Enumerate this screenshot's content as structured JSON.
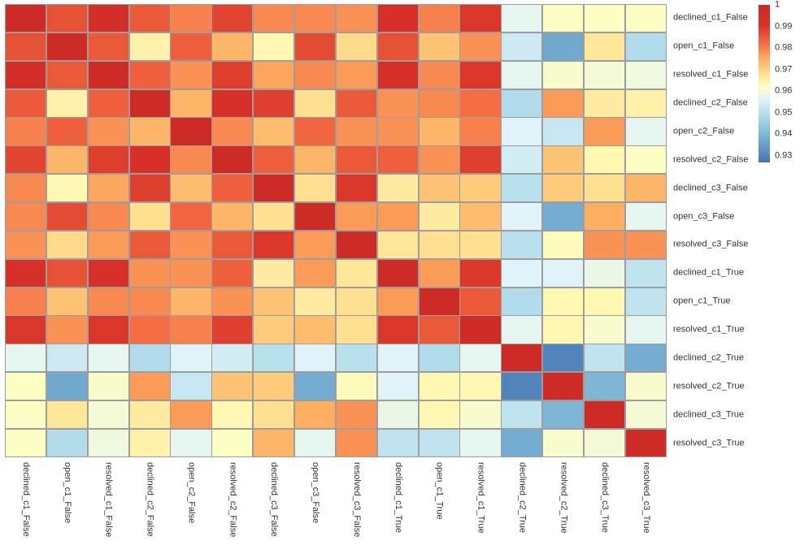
{
  "chart_data": {
    "type": "heatmap",
    "description": "correlation matrix heatmap",
    "labels": [
      "declined_c1_False",
      "open_c1_False",
      "resolved_c1_False",
      "declined_c2_False",
      "open_c2_False",
      "resolved_c2_False",
      "declined_c3_False",
      "open_c3_False",
      "resolved_c3_False",
      "declined_c1_True",
      "open_c1_True",
      "resolved_c1_True",
      "declined_c2_True",
      "resolved_c2_True",
      "declined_c3_True",
      "resolved_c3_True"
    ],
    "matrix": [
      [
        1.0,
        0.986,
        0.995,
        0.985,
        0.98,
        0.988,
        0.979,
        0.979,
        0.978,
        0.993,
        0.98,
        0.99,
        0.957,
        0.962,
        0.962,
        0.962
      ],
      [
        0.986,
        1.0,
        0.985,
        0.965,
        0.984,
        0.974,
        0.964,
        0.987,
        0.969,
        0.986,
        0.972,
        0.978,
        0.953,
        0.937,
        0.967,
        0.949
      ],
      [
        0.995,
        0.985,
        1.0,
        0.984,
        0.978,
        0.989,
        0.976,
        0.979,
        0.977,
        0.992,
        0.979,
        0.99,
        0.957,
        0.961,
        0.96,
        0.959
      ],
      [
        0.985,
        0.965,
        0.984,
        1.0,
        0.974,
        0.992,
        0.989,
        0.968,
        0.985,
        0.978,
        0.979,
        0.982,
        0.949,
        0.977,
        0.966,
        0.965
      ],
      [
        0.98,
        0.984,
        0.978,
        0.974,
        1.0,
        0.979,
        0.973,
        0.983,
        0.978,
        0.978,
        0.974,
        0.98,
        0.956,
        0.952,
        0.977,
        0.957
      ],
      [
        0.988,
        0.974,
        0.989,
        0.992,
        0.979,
        1.0,
        0.984,
        0.974,
        0.985,
        0.984,
        0.978,
        0.989,
        0.954,
        0.972,
        0.964,
        0.962
      ],
      [
        0.979,
        0.964,
        0.976,
        0.989,
        0.973,
        0.984,
        1.0,
        0.968,
        0.99,
        0.966,
        0.972,
        0.971,
        0.95,
        0.971,
        0.968,
        0.974
      ],
      [
        0.979,
        0.987,
        0.979,
        0.968,
        0.983,
        0.974,
        0.968,
        1.0,
        0.977,
        0.977,
        0.966,
        0.973,
        0.956,
        0.938,
        0.975,
        0.957
      ],
      [
        0.978,
        0.969,
        0.977,
        0.985,
        0.978,
        0.985,
        0.99,
        0.977,
        1.0,
        0.967,
        0.968,
        0.968,
        0.95,
        0.963,
        0.978,
        0.978
      ],
      [
        0.993,
        0.986,
        0.992,
        0.978,
        0.978,
        0.984,
        0.966,
        0.977,
        0.967,
        1.0,
        0.977,
        0.99,
        0.956,
        0.956,
        0.958,
        0.951
      ],
      [
        0.98,
        0.972,
        0.979,
        0.979,
        0.974,
        0.978,
        0.972,
        0.966,
        0.968,
        0.977,
        1.0,
        0.985,
        0.949,
        0.964,
        0.964,
        0.951
      ],
      [
        0.99,
        0.978,
        0.99,
        0.982,
        0.98,
        0.989,
        0.971,
        0.973,
        0.968,
        0.99,
        0.985,
        1.0,
        0.957,
        0.964,
        0.961,
        0.957
      ],
      [
        0.957,
        0.953,
        0.957,
        0.949,
        0.956,
        0.954,
        0.95,
        0.956,
        0.95,
        0.956,
        0.949,
        0.957,
        1.0,
        0.93,
        0.951,
        0.938
      ],
      [
        0.962,
        0.937,
        0.961,
        0.977,
        0.952,
        0.972,
        0.971,
        0.938,
        0.963,
        0.956,
        0.964,
        0.964,
        0.93,
        1.0,
        0.94,
        0.961
      ],
      [
        0.962,
        0.967,
        0.96,
        0.966,
        0.977,
        0.964,
        0.968,
        0.975,
        0.978,
        0.958,
        0.964,
        0.961,
        0.951,
        0.94,
        1.0,
        0.96
      ],
      [
        0.962,
        0.949,
        0.959,
        0.965,
        0.957,
        0.962,
        0.974,
        0.957,
        0.978,
        0.951,
        0.951,
        0.957,
        0.938,
        0.961,
        0.96,
        1.0
      ]
    ],
    "colorbar": {
      "vmin": 0.927,
      "vmax": 1.0,
      "ticks": [
        {
          "label": "1",
          "value": 1.0
        },
        {
          "label": "0.99",
          "value": 0.99
        },
        {
          "label": "0.98",
          "value": 0.98
        },
        {
          "label": "0.97",
          "value": 0.97
        },
        {
          "label": "0.96",
          "value": 0.96
        },
        {
          "label": "0.95",
          "value": 0.95
        },
        {
          "label": "0.94",
          "value": 0.94
        },
        {
          "label": "0.93",
          "value": 0.93
        }
      ]
    },
    "colormap": {
      "name": "RdYlBu_r",
      "stops": [
        {
          "v": 0.927,
          "c": "#4575b4"
        },
        {
          "v": 0.938,
          "c": "#74add1"
        },
        {
          "v": 0.948,
          "c": "#abd9e9"
        },
        {
          "v": 0.956,
          "c": "#e0f3f8"
        },
        {
          "v": 0.9625,
          "c": "#ffffbf"
        },
        {
          "v": 0.968,
          "c": "#fee090"
        },
        {
          "v": 0.975,
          "c": "#fdae61"
        },
        {
          "v": 0.982,
          "c": "#f46d43"
        },
        {
          "v": 0.991,
          "c": "#d73027"
        },
        {
          "v": 1.0,
          "c": "#ce2b26"
        }
      ]
    },
    "colors": {
      "grid_line": "#9d9d9d",
      "label_text": "#333333",
      "background": "#ffffff"
    }
  }
}
